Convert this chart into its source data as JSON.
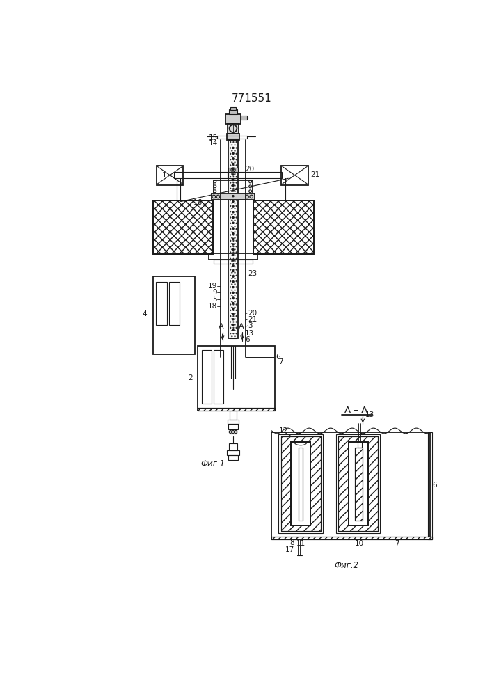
{
  "title": "771551",
  "title_fontsize": 11,
  "fig1_label": "Фиг.1",
  "fig2_label": "Фиг.2",
  "section_label": "A – A",
  "bg_color": "#ffffff",
  "line_color": "#1a1a1a",
  "label_fontsize": 8.0,
  "small_fontsize": 7.5
}
